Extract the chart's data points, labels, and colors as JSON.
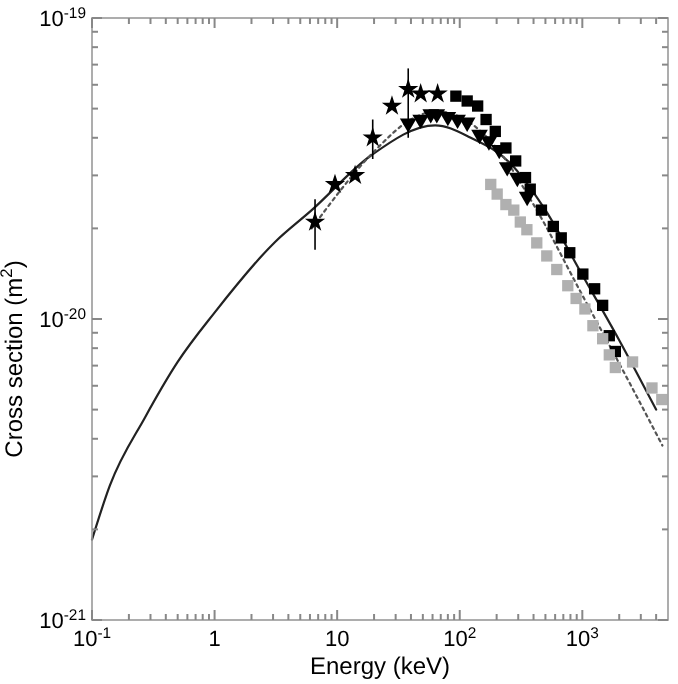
{
  "chart_data": {
    "type": "scatter",
    "xlabel": "Energy (keV)",
    "ylabel": "Cross section (m$^{2}$)",
    "log": "xy",
    "grid": false,
    "xlim": [
      0.1,
      5000
    ],
    "ylim": [
      1e-21,
      1e-19
    ],
    "xticks": [
      {
        "value": 0.1,
        "label": "10$^{-1}$"
      },
      {
        "value": 0.2,
        "label": null
      },
      {
        "value": 0.3,
        "label": null
      },
      {
        "value": 0.4,
        "label": null
      },
      {
        "value": 0.5,
        "label": null
      },
      {
        "value": 0.6,
        "label": null
      },
      {
        "value": 0.7,
        "label": null
      },
      {
        "value": 0.8,
        "label": null
      },
      {
        "value": 0.9,
        "label": null
      },
      1,
      {
        "value": 2,
        "label": null
      },
      {
        "value": 3,
        "label": null
      },
      {
        "value": 4,
        "label": null
      },
      {
        "value": 5,
        "label": null
      },
      {
        "value": 6,
        "label": null
      },
      {
        "value": 7,
        "label": null
      },
      {
        "value": 8,
        "label": null
      },
      {
        "value": 9,
        "label": null
      },
      10,
      {
        "value": 20,
        "label": null
      },
      {
        "value": 30,
        "label": null
      },
      {
        "value": 40,
        "label": null
      },
      {
        "value": 50,
        "label": null
      },
      {
        "value": 60,
        "label": null
      },
      {
        "value": 70,
        "label": null
      },
      {
        "value": 80,
        "label": null
      },
      {
        "value": 90,
        "label": null
      },
      {
        "value": 100,
        "label": "10$^{2}$"
      },
      {
        "value": 200,
        "label": null
      },
      {
        "value": 300,
        "label": null
      },
      {
        "value": 400,
        "label": null
      },
      {
        "value": 500,
        "label": null
      },
      {
        "value": 600,
        "label": null
      },
      {
        "value": 700,
        "label": null
      },
      {
        "value": 800,
        "label": null
      },
      {
        "value": 900,
        "label": null
      },
      {
        "value": 1000,
        "label": "10$^{3}$"
      },
      {
        "value": 2000,
        "label": null
      },
      {
        "value": 3000,
        "label": null
      },
      {
        "value": 4000,
        "label": null
      }
    ],
    "yticks": [
      {
        "value": 1e-21,
        "label": "10$^{-21}$"
      },
      {
        "value": 2e-21,
        "label": null
      },
      {
        "value": 3e-21,
        "label": null
      },
      {
        "value": 4e-21,
        "label": null
      },
      {
        "value": 5e-21,
        "label": null
      },
      {
        "value": 6e-21,
        "label": null
      },
      {
        "value": 7e-21,
        "label": null
      },
      {
        "value": 8e-21,
        "label": null
      },
      {
        "value": 9e-21,
        "label": null
      },
      {
        "value": 1e-20,
        "label": "10$^{-20}$"
      },
      {
        "value": 2e-20,
        "label": null
      },
      {
        "value": 3e-20,
        "label": null
      },
      {
        "value": 4e-20,
        "label": null
      },
      {
        "value": 5e-20,
        "label": null
      },
      {
        "value": 6e-20,
        "label": null
      },
      {
        "value": 7e-20,
        "label": null
      },
      {
        "value": 8e-20,
        "label": null
      },
      {
        "value": 9e-20,
        "label": null
      },
      {
        "value": 1e-19,
        "label": "10$^{-19}$"
      }
    ],
    "series": [
      {
        "type": "line",
        "line_style": "solid",
        "marker": "none",
        "color": "#222222",
        "x": [
          0.1,
          0.14,
          0.27,
          0.5,
          1,
          3.1,
          6.2,
          19,
          63,
          123,
          257,
          500,
          1000,
          2000,
          4000
        ],
        "values": [
          1.85e-21,
          2.8e-21,
          4.7e-21,
          7.2e-21,
          1.05e-20,
          1.8e-20,
          2.3e-20,
          3.5e-20,
          4.4e-20,
          4e-20,
          3.3e-20,
          2.3e-20,
          1.4e-20,
          8.5e-21,
          5e-21
        ]
      },
      {
        "type": "line",
        "line_style": "dotted",
        "marker": "none",
        "color": "#555555",
        "x": [
          6.2,
          20,
          40,
          65,
          110,
          200,
          400,
          1000,
          2500,
          4500
        ],
        "values": [
          2e-20,
          3.6e-20,
          4.6e-20,
          4.9e-20,
          4.6e-20,
          3.7e-20,
          2.4e-20,
          1.2e-20,
          6e-21,
          3.8e-21
        ]
      },
      {
        "marker": "star",
        "color": "#000000",
        "x": [
          6.6,
          9.6,
          14,
          19.5,
          28,
          38,
          48,
          66
        ],
        "values": [
          2.1e-20,
          2.8e-20,
          3e-20,
          4e-20,
          5.1e-20,
          5.8e-20,
          5.6e-20,
          5.6e-20
        ],
        "errors": [
          [
            1.7e-20,
            2.5e-20
          ],
          null,
          null,
          [
            3.4e-20,
            4.6e-20
          ],
          null,
          [
            4e-20,
            6.8e-20
          ],
          null,
          null
        ]
      },
      {
        "marker": "triangle",
        "color": "#000000",
        "x": [
          38,
          48,
          58,
          65,
          80,
          96,
          115,
          145,
          173,
          210,
          244,
          295,
          355
        ],
        "values": [
          4.47e-20,
          4.6e-20,
          4.8e-20,
          4.8e-20,
          4.7e-20,
          4.6e-20,
          4.5e-20,
          4.1e-20,
          3.9e-20,
          3.65e-20,
          3.2e-20,
          2.95e-20,
          2.55e-20
        ]
      },
      {
        "marker": "square",
        "color": "#000000",
        "x": [
          93,
          115,
          140,
          164,
          195,
          238,
          286,
          344,
          376,
          464,
          580,
          673,
          790,
          1010,
          1260,
          1465,
          1660,
          1860
        ],
        "values": [
          5.5e-20,
          5.3e-20,
          5.1e-20,
          4.6e-20,
          4.2e-20,
          3.7e-20,
          3.35e-20,
          2.95e-20,
          2.7e-20,
          2.3e-20,
          2.03e-20,
          1.86e-20,
          1.66e-20,
          1.41e-20,
          1.26e-20,
          1.11e-20,
          8.8e-21,
          7.8e-21
        ]
      },
      {
        "marker": "square",
        "color": "#b0b0b0",
        "x": [
          179,
          202,
          238,
          276,
          312,
          353,
          425,
          513,
          619,
          761,
          890,
          1050,
          1220,
          1465,
          1660,
          1860,
          2570,
          3700,
          4450
        ],
        "values": [
          2.8e-20,
          2.6e-20,
          2.4e-20,
          2.3e-20,
          2.1e-20,
          1.98e-20,
          1.79e-20,
          1.62e-20,
          1.46e-20,
          1.29e-20,
          1.17e-20,
          1.08e-20,
          9.5e-21,
          8.6e-21,
          7.6e-21,
          6.9e-21,
          7.2e-21,
          5.9e-21,
          5.4e-21
        ]
      }
    ]
  }
}
